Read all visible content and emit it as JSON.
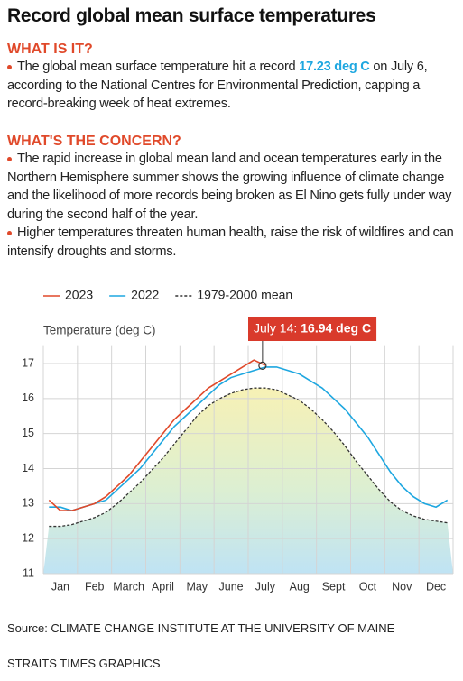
{
  "title": "Record global mean surface temperatures",
  "what_is_it": {
    "heading": "WHAT IS IT?",
    "text_before": "The global mean surface temperature hit a record",
    "highlight": "17.23 deg C",
    "text_after": "on July 6, according to the National Centres for Environmental Prediction, capping a record-breaking week of heat extremes."
  },
  "concern": {
    "heading": "WHAT'S THE CONCERN?",
    "bullets": [
      "The rapid increase in global mean land and ocean temperatures early in the Northern Hemisphere summer shows the growing influence of climate change and the likelihood of more records being broken as El Nino gets fully under way during the second half of the year.",
      "Higher temperatures threaten human health, raise the risk of wildfires and can intensify droughts and storms."
    ]
  },
  "chart_data": {
    "type": "line",
    "y_label": "Temperature (deg C)",
    "categories": [
      null,
      "Jan",
      null,
      null,
      "Feb",
      null,
      null,
      "March",
      null,
      null,
      "April",
      null,
      null,
      "May",
      null,
      null,
      "June",
      null,
      null,
      "July",
      null,
      null,
      "Aug",
      null,
      null,
      "Sept",
      null,
      null,
      "Oct",
      null,
      null,
      "Nov",
      null,
      null,
      "Dec",
      null
    ],
    "series": [
      {
        "name": "2023",
        "color": "#e0492a",
        "dash": false,
        "values": [
          13.1,
          12.8,
          12.8,
          12.9,
          13.0,
          13.2,
          13.5,
          13.8,
          14.2,
          14.6,
          15.0,
          15.4,
          15.7,
          16.0,
          16.3,
          16.5,
          16.7,
          16.9,
          17.1,
          16.95,
          null,
          null,
          null,
          null,
          null,
          null,
          null,
          null,
          null,
          null,
          null,
          null,
          null,
          null,
          null,
          null
        ]
      },
      {
        "name": "2022",
        "color": "#1ea7e0",
        "dash": false,
        "values": [
          12.9,
          12.9,
          12.8,
          12.9,
          13.0,
          13.1,
          13.4,
          13.7,
          14.0,
          14.4,
          14.8,
          15.2,
          15.5,
          15.8,
          16.1,
          16.4,
          16.6,
          16.7,
          16.8,
          16.9,
          16.9,
          16.8,
          16.7,
          16.5,
          16.3,
          16.0,
          15.7,
          15.3,
          14.9,
          14.4,
          13.9,
          13.5,
          13.2,
          13.0,
          12.9,
          13.1
        ]
      },
      {
        "name": "1979-2000 mean",
        "color": "#333333",
        "dash": true,
        "values": [
          12.35,
          12.35,
          12.4,
          12.5,
          12.6,
          12.75,
          13.0,
          13.3,
          13.6,
          13.95,
          14.3,
          14.7,
          15.1,
          15.5,
          15.8,
          16.0,
          16.15,
          16.25,
          16.3,
          16.3,
          16.25,
          16.1,
          15.95,
          15.7,
          15.4,
          15.05,
          14.65,
          14.2,
          13.8,
          13.4,
          13.05,
          12.8,
          12.65,
          12.55,
          12.5,
          12.45
        ]
      }
    ],
    "ylim": [
      11,
      17.5
    ],
    "yticks": [
      11,
      12,
      13,
      14,
      15,
      16,
      17
    ],
    "grid": true,
    "annotation": {
      "date": "July 14:",
      "value": 16.94,
      "value_label": "16.94 deg C"
    }
  },
  "source": "Source: CLIMATE CHANGE INSTITUTE AT THE UNIVERSITY OF MAINE",
  "credit": "STRAITS TIMES GRAPHICS"
}
